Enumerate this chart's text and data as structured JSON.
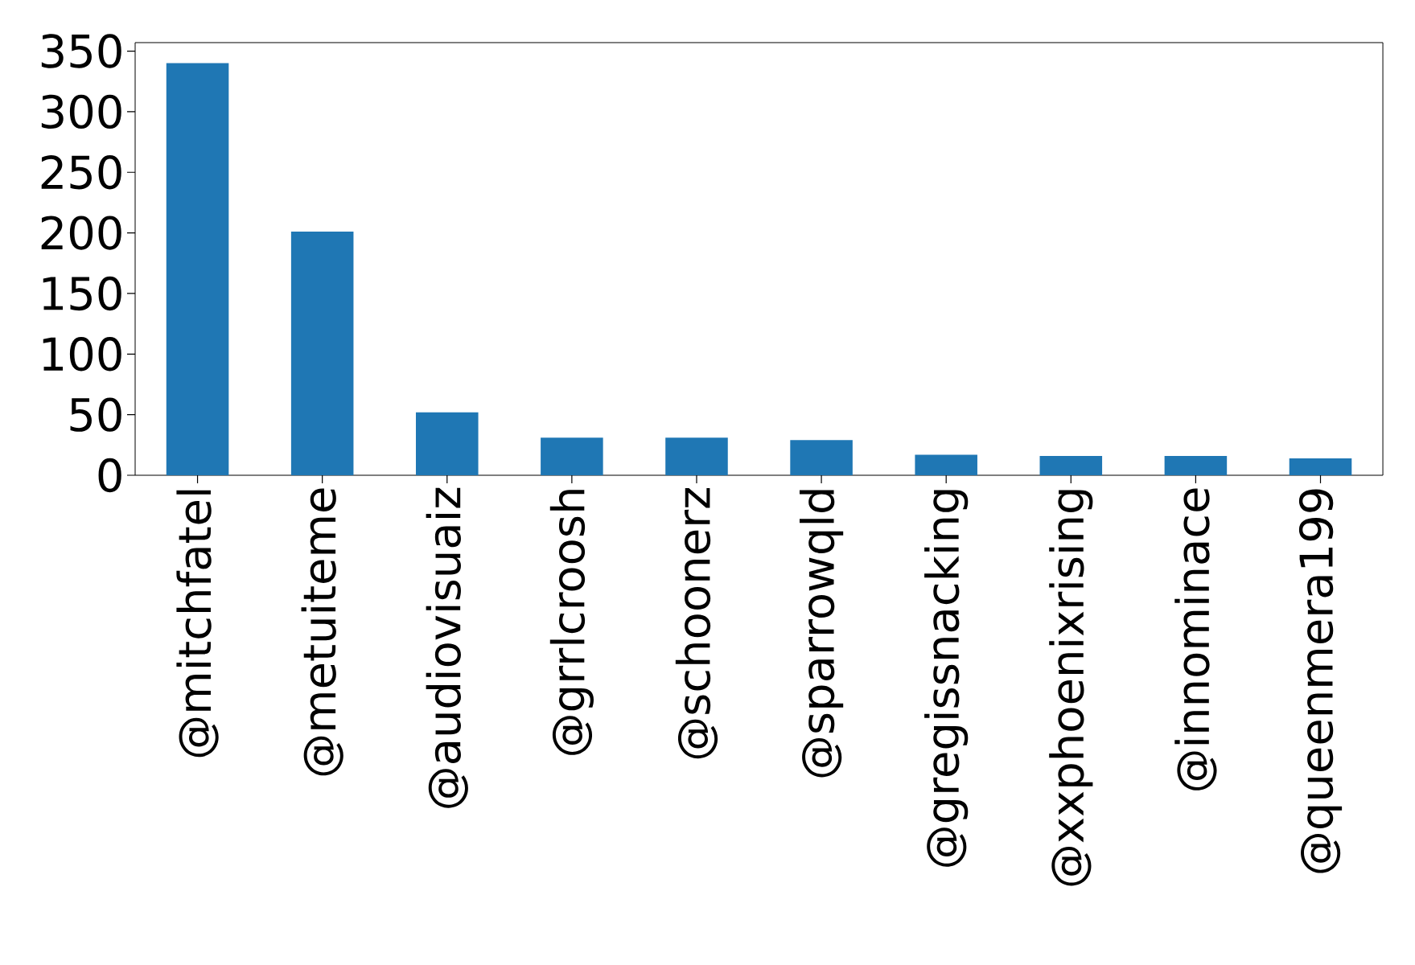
{
  "chart_data": {
    "type": "bar",
    "categories": [
      "@mitchfatel",
      "@metuiteme",
      "@audiovisuaiz",
      "@grrlcroosh",
      "@schoonerz",
      "@sparrowqld",
      "@gregissnacking",
      "@xxphoenixrising",
      "@innominace",
      "@queenmera199"
    ],
    "values": [
      340,
      201,
      52,
      31,
      31,
      29,
      17,
      16,
      16,
      14
    ],
    "color": "#1f77b4",
    "ylim": [
      0,
      357
    ],
    "yticks": [
      0,
      50,
      100,
      150,
      200,
      250,
      300,
      350
    ]
  }
}
